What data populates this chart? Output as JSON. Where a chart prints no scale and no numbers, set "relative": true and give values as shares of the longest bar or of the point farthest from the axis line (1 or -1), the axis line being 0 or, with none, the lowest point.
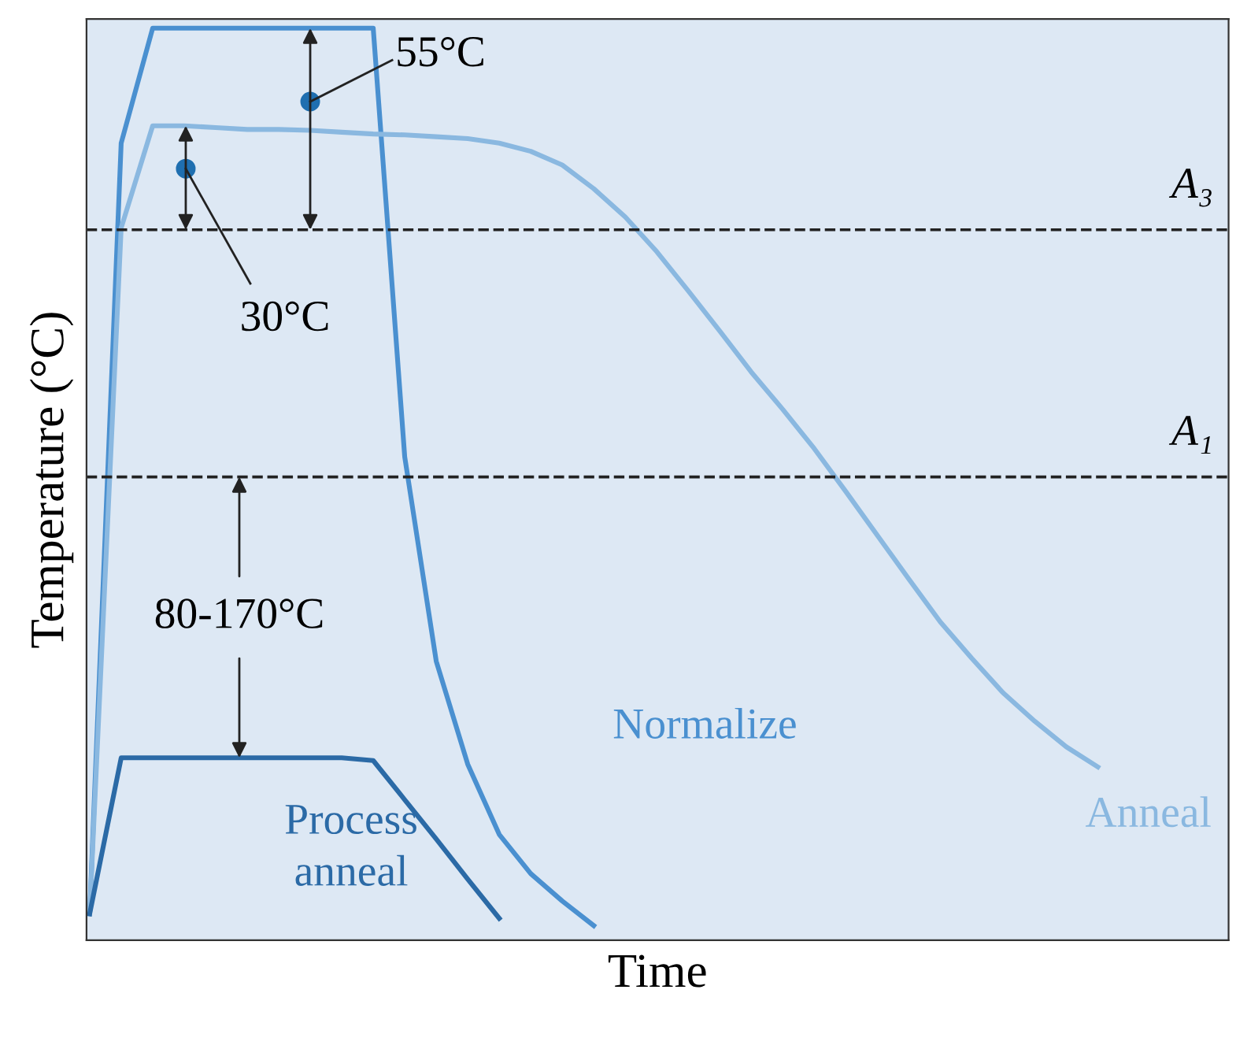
{
  "chart_data": {
    "type": "line",
    "relative": true,
    "xlabel": "Time",
    "ylabel": "Temperature (°C)",
    "categories": [
      null,
      null,
      null,
      null,
      null,
      null,
      null,
      null,
      null,
      null,
      null,
      null,
      null,
      null,
      null,
      null,
      null,
      null,
      null,
      null,
      null,
      null,
      null,
      null,
      null,
      null,
      null,
      null,
      null,
      null,
      null,
      null,
      null,
      null,
      null,
      null,
      null
    ],
    "series": [
      {
        "name": "Normalize",
        "color": "#4a90d0",
        "values": [
          0.029,
          0.874,
          1.0,
          1.0,
          1.0,
          1.0,
          1.0,
          1.0,
          1.0,
          1.0,
          0.53,
          0.306,
          0.193,
          0.116,
          0.073,
          0.043,
          0.016,
          null,
          null,
          null,
          null,
          null,
          null,
          null,
          null,
          null,
          null,
          null,
          null,
          null,
          null,
          null,
          null,
          null,
          null,
          null,
          null
        ]
      },
      {
        "name": "Anneal",
        "color": "#8ab8e0",
        "values": [
          0.029,
          0.781,
          0.893,
          0.893,
          0.891,
          0.889,
          0.889,
          0.888,
          0.886,
          0.884,
          0.883,
          0.881,
          0.879,
          0.874,
          0.865,
          0.85,
          0.824,
          0.793,
          0.755,
          0.712,
          0.668,
          0.623,
          0.582,
          0.539,
          0.492,
          0.444,
          0.396,
          0.349,
          0.309,
          0.271,
          0.24,
          0.212,
          0.19,
          null,
          null,
          null,
          null
        ]
      },
      {
        "name": "Process\nanneal",
        "color": "#2b6aa6",
        "values": [
          0.029,
          0.2,
          0.2,
          0.2,
          0.2,
          0.2,
          0.2,
          0.2,
          0.2,
          0.197,
          0.154,
          0.111,
          0.067,
          0.024,
          null,
          null,
          null,
          null,
          null,
          null,
          null,
          null,
          null,
          null,
          null,
          null,
          null,
          null,
          null,
          null,
          null,
          null,
          null,
          null,
          null,
          null,
          null
        ]
      }
    ],
    "ref_lines": [
      {
        "axis": "y",
        "value": 0.779,
        "label": "A₃",
        "color": "#222222",
        "line_style": "dashed"
      },
      {
        "axis": "y",
        "value": 0.508,
        "label": "A₁",
        "color": "#222222",
        "line_style": "dashed"
      }
    ],
    "annotations": [
      "55°C",
      "30°C",
      "80-170°C"
    ],
    "legend": false,
    "marker": "none",
    "line_style": "solid"
  }
}
